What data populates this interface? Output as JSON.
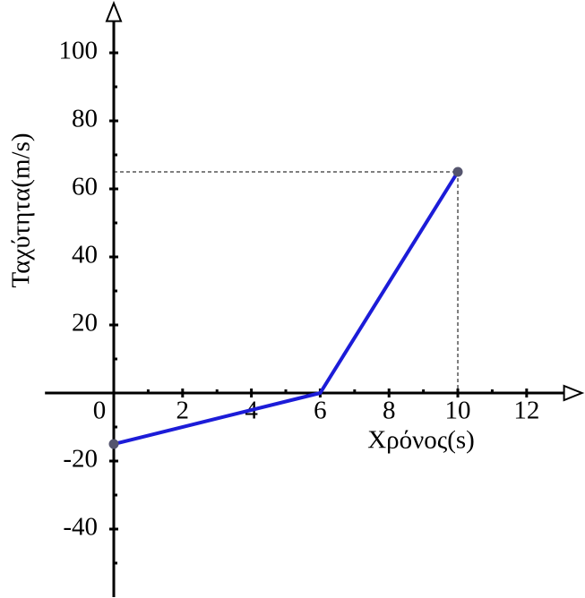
{
  "chart_data": {
    "type": "line",
    "x_label": "Χρόνος(s)",
    "y_label": "Ταχύτητα(m/s)",
    "x": [
      0,
      6,
      10
    ],
    "series": [
      {
        "color": "#1c1cd8",
        "values": [
          -15,
          0,
          65
        ]
      }
    ],
    "marker_indices": [
      0,
      2
    ],
    "guide_index": 2,
    "xlim": [
      -2,
      13.4
    ],
    "ylim": [
      -60,
      113
    ],
    "xticks": [
      0,
      2,
      4,
      6,
      8,
      10,
      12
    ],
    "xminorticks": [
      1,
      3,
      5,
      7,
      9,
      11
    ],
    "yticks": [
      -40,
      -20,
      20,
      40,
      60,
      80,
      100
    ],
    "yminorticks": [
      -50,
      -30,
      -10,
      10,
      30,
      50,
      70,
      90
    ]
  }
}
